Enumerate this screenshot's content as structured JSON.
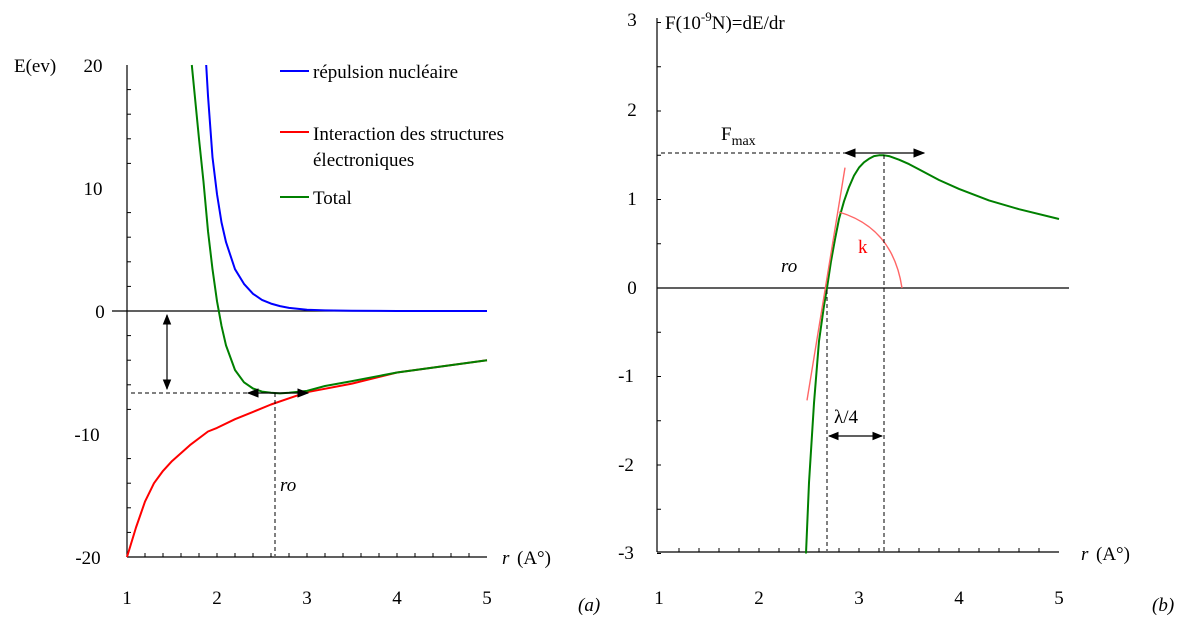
{
  "chart_data": [
    {
      "type": "line",
      "panel_label": "(a)",
      "ylabel": "E(ev)",
      "xlabel_var": "r",
      "xlabel_unit": "(A°)",
      "xlim": [
        1,
        5
      ],
      "ylim": [
        -20,
        20
      ],
      "x_ticks": [
        "1",
        "2",
        "3",
        "4",
        "5"
      ],
      "y_ticks": [
        "-20",
        "-10",
        "0",
        "10",
        "20"
      ],
      "grid": false,
      "legend_position": "top-right",
      "series": [
        {
          "name": "répulsion nucléaire",
          "color": "#0000ff",
          "x": [
            1.88,
            1.9,
            1.95,
            2.0,
            2.05,
            2.1,
            2.2,
            2.3,
            2.4,
            2.5,
            2.6,
            2.7,
            2.8,
            3.0,
            3.2,
            3.5,
            4.0,
            4.5,
            5.0
          ],
          "y": [
            20,
            17.5,
            12.5,
            9.5,
            7.2,
            5.6,
            3.4,
            2.2,
            1.4,
            0.9,
            0.6,
            0.4,
            0.25,
            0.1,
            0.05,
            0.02,
            0.0,
            0.0,
            0.0
          ]
        },
        {
          "name": "Interaction des structures électroniques",
          "color": "#ff0000",
          "x": [
            1.0,
            1.1,
            1.2,
            1.3,
            1.4,
            1.5,
            1.7,
            1.9,
            2.0,
            2.2,
            2.4,
            2.6,
            2.8,
            3.0,
            3.5,
            4.0,
            4.5,
            5.0
          ],
          "y": [
            -20,
            -17.6,
            -15.5,
            -14.0,
            -13.0,
            -12.2,
            -10.9,
            -9.8,
            -9.5,
            -8.8,
            -8.2,
            -7.6,
            -7.1,
            -6.6,
            -5.9,
            -5.0,
            -4.5,
            -4.0
          ]
        },
        {
          "name": "Total",
          "color": "#008000",
          "x": [
            1.72,
            1.8,
            1.85,
            1.9,
            1.95,
            2.0,
            2.05,
            2.1,
            2.2,
            2.3,
            2.4,
            2.5,
            2.6,
            2.7,
            2.8,
            3.0,
            3.2,
            3.5,
            4.0,
            4.5,
            5.0
          ],
          "y": [
            20,
            14,
            10.5,
            6.5,
            3.4,
            0.8,
            -1.2,
            -2.8,
            -4.8,
            -5.8,
            -6.3,
            -6.55,
            -6.65,
            -6.7,
            -6.65,
            -6.5,
            -6.1,
            -5.7,
            -5.0,
            -4.5,
            -4.0
          ]
        }
      ],
      "annotations": [
        {
          "type": "marker",
          "text": "ro",
          "x": 2.68,
          "y": -6.7
        }
      ]
    },
    {
      "type": "line",
      "panel_label": "(b)",
      "ylabel": "F(10^-9N)=dE/dr",
      "ylabel_base": "F(10",
      "ylabel_sup": "-9",
      "ylabel_rest": "N)=dE/dr",
      "xlabel_var": "r",
      "xlabel_unit": "(A°)",
      "xlim": [
        1,
        5
      ],
      "ylim": [
        -3,
        3
      ],
      "x_ticks": [
        "1",
        "2",
        "3",
        "4",
        "5"
      ],
      "y_ticks": [
        "-3",
        "-2",
        "-1",
        "0",
        "1",
        "2",
        "3"
      ],
      "grid": false,
      "series": [
        {
          "color": "#008000",
          "x": [
            2.47,
            2.5,
            2.55,
            2.6,
            2.65,
            2.68,
            2.72,
            2.76,
            2.8,
            2.85,
            2.9,
            2.95,
            3.0,
            3.05,
            3.1,
            3.15,
            3.2,
            3.25,
            3.3,
            3.4,
            3.5,
            3.6,
            3.8,
            4.0,
            4.3,
            4.6,
            5.0
          ],
          "y": [
            -3.0,
            -2.2,
            -1.3,
            -0.6,
            -0.2,
            0.0,
            0.3,
            0.55,
            0.78,
            0.98,
            1.14,
            1.27,
            1.36,
            1.42,
            1.46,
            1.49,
            1.5,
            1.5,
            1.49,
            1.45,
            1.4,
            1.34,
            1.22,
            1.12,
            0.99,
            0.89,
            0.78
          ]
        }
      ],
      "tangent": {
        "color": "#ff6666",
        "x1": 2.48,
        "y1": -1.27,
        "x2": 2.86,
        "y2": 1.36
      },
      "annotations": [
        {
          "type": "marker",
          "text": "ro",
          "x": 2.68,
          "y": 0.0
        },
        {
          "type": "angle",
          "text": "k",
          "color": "#ff0000"
        },
        {
          "type": "horizontal-span",
          "text": "λ/4",
          "x_from": 2.68,
          "x_to": 3.25
        },
        {
          "type": "level",
          "text_main": "F",
          "text_sub": "max",
          "y": 1.5,
          "x": 3.25
        }
      ]
    }
  ]
}
